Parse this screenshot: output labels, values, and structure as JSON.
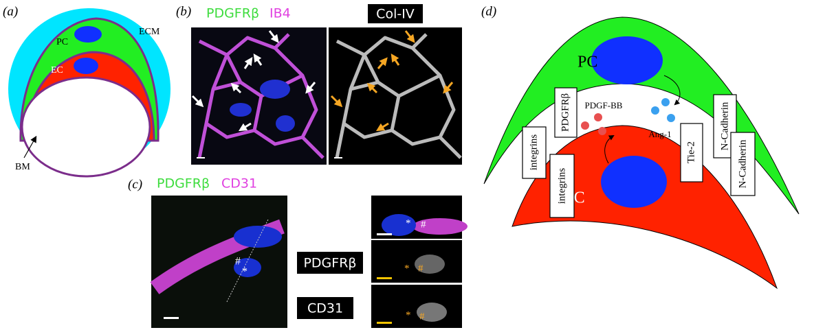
{
  "panels": {
    "a": {
      "label": "(a)",
      "ecm": "ECM",
      "pc": "PC",
      "ec": "EC",
      "bm": "BM"
    },
    "b": {
      "label": "(b)",
      "stains": [
        "PDGFRβ",
        "IB4"
      ],
      "second_stain": "Col-IV"
    },
    "c": {
      "label": "(c)",
      "stains": [
        "PDGFRβ",
        "CD31"
      ],
      "markers": [
        "#",
        "*"
      ],
      "row_labels": [
        "PDGFRβ",
        "CD31"
      ]
    },
    "d": {
      "label": "(d)",
      "pc": "PC",
      "ec": "EC",
      "receptor": "PDGFRβ",
      "ligands": [
        "PDGF-BB",
        "Ang-1"
      ],
      "integrins": [
        "integrins",
        "integrins"
      ],
      "tie2": "Tie-2",
      "cadherins": [
        "N-Cadherin",
        "N-Cadherin"
      ]
    }
  }
}
